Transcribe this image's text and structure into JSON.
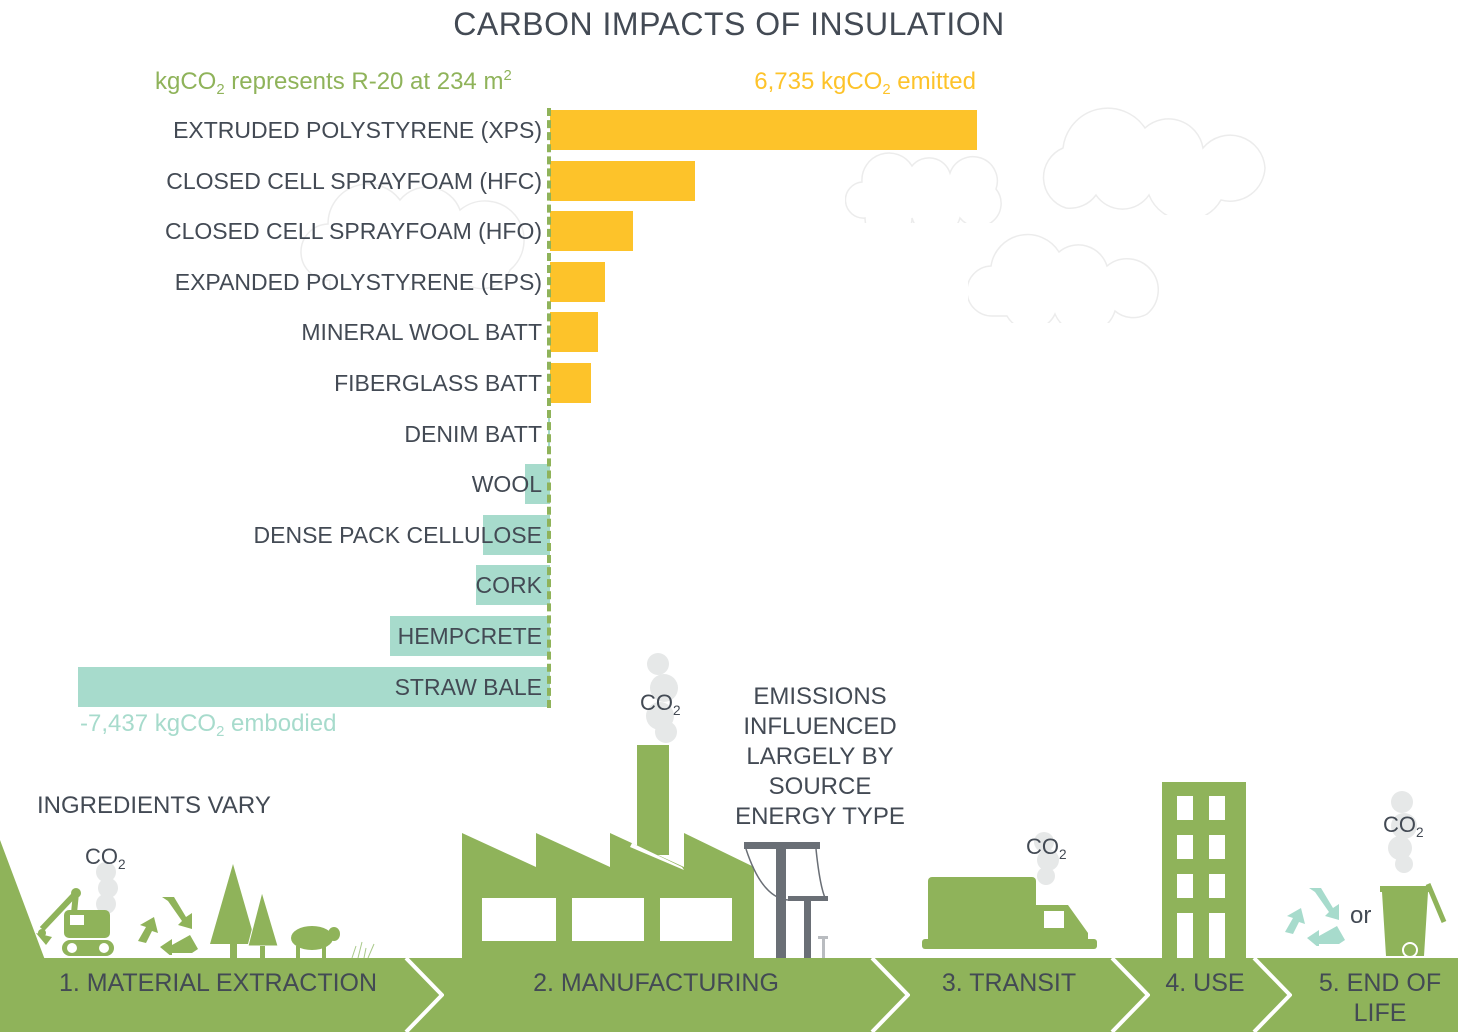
{
  "title": "CARBON IMPACTS OF INSULATION",
  "legend": {
    "left_prefix": "kgCO",
    "left_sub": "2",
    "left_mid": " represents R-20 at 234 m",
    "left_sup": "2",
    "right_prefix": "6,735 kgCO",
    "right_sub": "2",
    "right_suffix": " emitted",
    "neg_prefix": "-7,437 kgCO",
    "neg_sub": "2",
    "neg_suffix": " embodied"
  },
  "colors": {
    "emitted": "#fdc32a",
    "embodied": "#a7dbcc",
    "green": "#8fb35a",
    "text": "#434a54"
  },
  "chart_data": {
    "type": "bar",
    "orientation": "horizontal",
    "title": "CARBON IMPACTS OF INSULATION",
    "xlabel": "kgCO2 (R-20 at 234 m2)",
    "ylabel": "",
    "xlim": [
      -7437,
      6735
    ],
    "grid": false,
    "categories": [
      "EXTRUDED POLYSTYRENE (XPS)",
      "CLOSED CELL SPRAYFOAM (HFC)",
      "CLOSED CELL SPRAYFOAM (HFO)",
      "EXPANDED POLYSTYRENE (EPS)",
      "MINERAL WOOL BATT",
      "FIBERGLASS BATT",
      "DENIM BATT",
      "WOOL",
      "DENSE PACK CELLULOSE",
      "CORK",
      "HEMPCRETE",
      "STRAW BALE"
    ],
    "values": [
      6735,
      2290,
      1310,
      870,
      760,
      650,
      -30,
      -400,
      -1060,
      -1160,
      -2520,
      -7437
    ],
    "annotations": [
      "6,735 kgCO2 emitted",
      "-7,437 kgCO2 embodied",
      "kgCO2 represents R-20 at 234 m2"
    ]
  },
  "stages": [
    {
      "label": "1. MATERIAL EXTRACTION"
    },
    {
      "label": "2. MANUFACTURING"
    },
    {
      "label": "3. TRANSIT"
    },
    {
      "label": "4. USE"
    },
    {
      "label": "5. END OF LIFE"
    }
  ],
  "notes": {
    "ingredients": "INGREDIENTS VARY",
    "emissions": [
      "EMISSIONS",
      "INFLUENCED",
      "LARGELY BY",
      "SOURCE",
      "ENERGY TYPE"
    ],
    "or": "or",
    "co2_main": "CO",
    "co2_sub": "2"
  }
}
